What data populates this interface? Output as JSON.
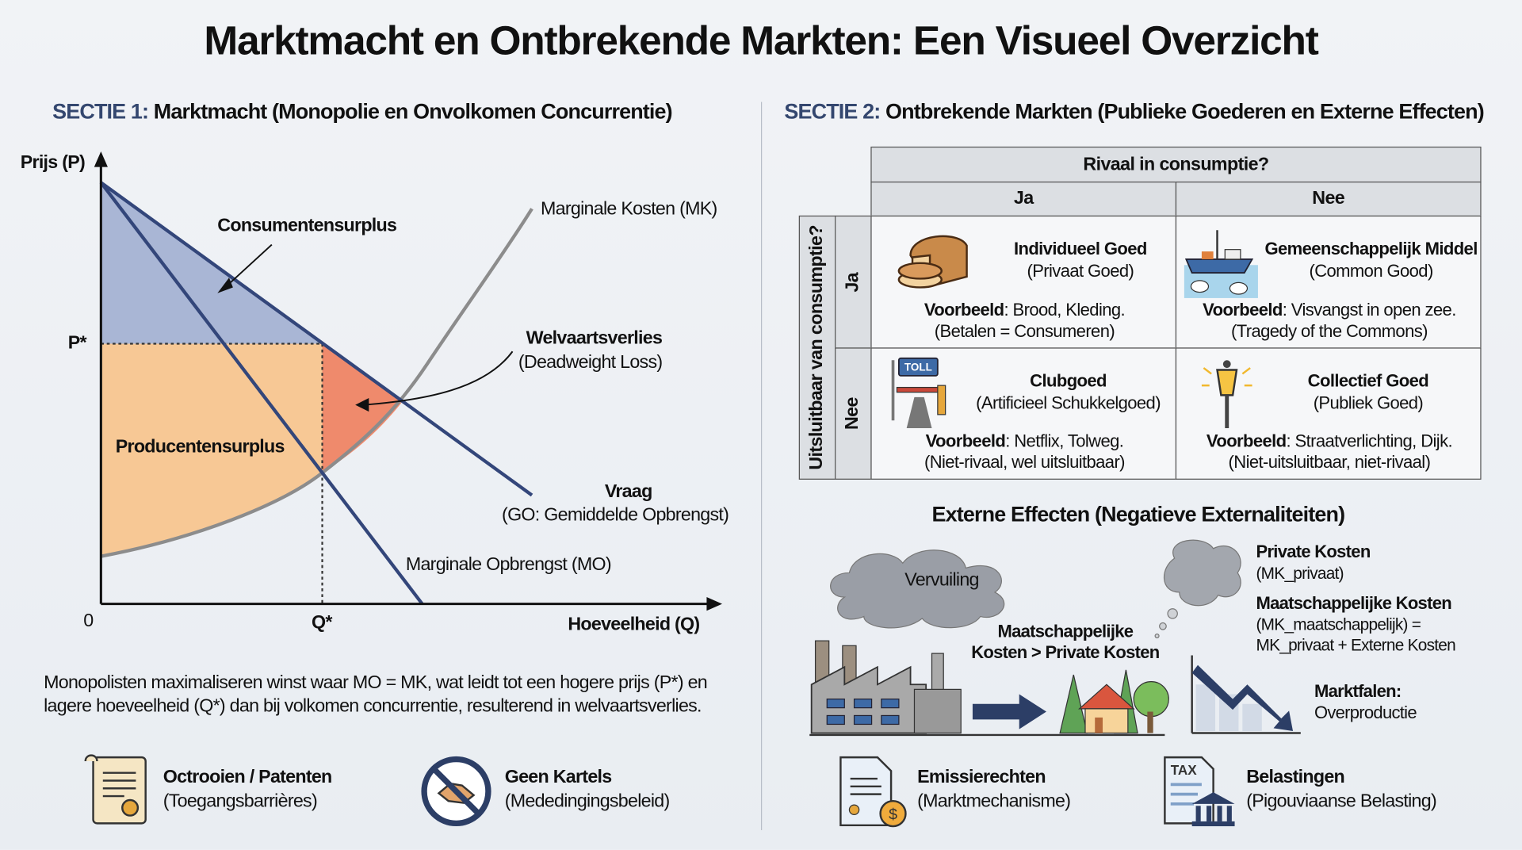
{
  "title": "Marktmacht en Ontbrekende Markten: Een Visueel Overzicht",
  "section1": {
    "key": "SECTIE 1:",
    "heading": "Marktmacht (Monopolie en Onvolkomen Concurrentie)",
    "diagram": {
      "y_axis": "Prijs (P)",
      "x_axis": "Hoeveelheid (Q)",
      "origin": "0",
      "p_star": "P*",
      "q_star": "Q*",
      "consumer_surplus": "Consumentensurplus",
      "producer_surplus": "Producentensurplus",
      "deadweight_title": "Welvaartsverlies",
      "deadweight_sub": "(Deadweight Loss)",
      "mk": "Marginale Kosten (MK)",
      "demand_title": "Vraag",
      "demand_sub": "(GO: Gemiddelde Opbrengst)",
      "mo": "Marginale Opbrengst (MO)",
      "colors": {
        "lines": "#33467a",
        "mk": "#8c8c8c",
        "cs": "#a9b6d5",
        "ps": "#f7c895",
        "dwl": "#ef8a6c"
      }
    },
    "summary_line1": "Monopolisten maximaliseren winst waar MO = MK, wat leidt tot een hogere prijs (P*) en",
    "summary_line2": "lagere hoeveelheid (Q*) dan bij volkomen concurrentie, resulterend in welvaartsverlies.",
    "policies": [
      {
        "icon": "patent-scroll-icon",
        "title": "Octrooien / Patenten",
        "sub": "(Toegangsbarrières)"
      },
      {
        "icon": "no-handshake-icon",
        "title": "Geen Kartels",
        "sub": "(Mededingingsbeleid)"
      }
    ]
  },
  "section2": {
    "key": "SECTIE 2:",
    "heading": "Ontbrekende Markten (Publieke Goederen en Externe Effecten)",
    "matrix": {
      "col_header": "Rivaal in consumptie?",
      "col_ja": "Ja",
      "col_nee": "Nee",
      "row_header": "Uitsluitbaar van consumptie?",
      "row_ja": "Ja",
      "row_nee": "Nee",
      "cells": [
        {
          "icon": "bread-icon",
          "title": "Individueel Goed",
          "sub": "(Privaat Goed)",
          "ex_label": "Voorbeeld",
          "ex": ": Brood, Kleding.",
          "note": "(Betalen = Consumeren)"
        },
        {
          "icon": "fishing-boat-icon",
          "title": "Gemeenschappelijk Middel",
          "sub": "(Common Good)",
          "ex_label": "Voorbeeld",
          "ex": ": Visvangst in open zee.",
          "note": "(Tragedy of the Commons)"
        },
        {
          "icon": "toll-gate-icon",
          "icon_text": "TOLL",
          "title": "Clubgoed",
          "sub": "(Artificieel Schukkelgoed)",
          "ex_label": "Voorbeeld",
          "ex": ": Netflix, Tolweg.",
          "note": "(Niet-rivaal, wel uitsluitbaar)"
        },
        {
          "icon": "street-lamp-icon",
          "title": "Collectief Goed",
          "sub": "(Publiek Goed)",
          "ex_label": "Voorbeeld",
          "ex": ": Straatverlichting, Dijk.",
          "note": "(Niet-uitsluitbaar, niet-rivaal)"
        }
      ]
    },
    "externalities": {
      "heading": "Externe Effecten (Negatieve Externaliteiten)",
      "cloud": "Vervuiling",
      "arrow_label_1": "Maatschappelijke",
      "arrow_label_2": "Kosten > Private Kosten",
      "private_title": "Private Kosten",
      "private_sub": "(MK_privaat)",
      "social_title": "Maatschappelijke Kosten",
      "social_sub1": "(MK_maatschappelijk) =",
      "social_sub2": "MK_privaat + Externe Kosten",
      "failure_title": "Marktfalen:",
      "failure_sub": "Overproductie"
    },
    "policies": [
      {
        "icon": "emission-certificate-icon",
        "title": "Emissierechten",
        "sub": "(Marktmechanisme)"
      },
      {
        "icon": "tax-building-icon",
        "icon_text": "TAX",
        "title": "Belastingen",
        "sub": "(Pigouviaanse Belasting)"
      }
    ]
  }
}
